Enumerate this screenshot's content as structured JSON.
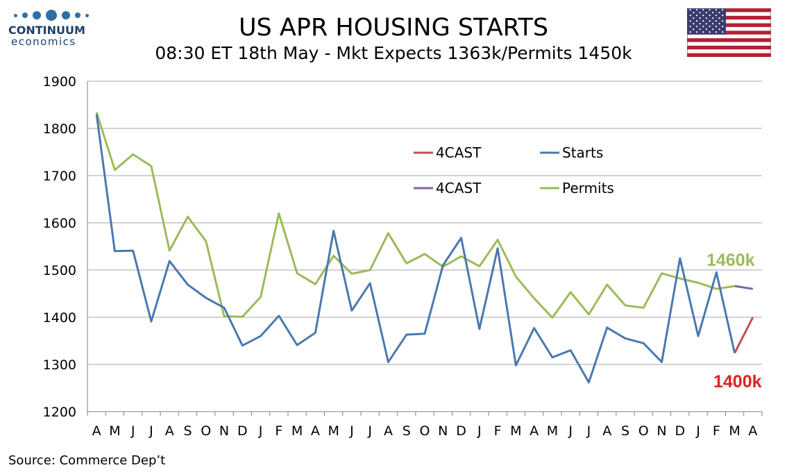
{
  "logo": {
    "name": "CONTINUUM",
    "sub": "economics"
  },
  "header": {
    "title": "US APR HOUSING STARTS",
    "subtitle": "08:30 ET 18th May - Mkt Expects 1363k/Permits 1450k"
  },
  "footer": {
    "source": "Source: Commerce Dep’t"
  },
  "colors": {
    "starts": "#4a78b0",
    "permits": "#9bbb59",
    "forecast_starts": "#c0504d",
    "forecast_permits": "#8064a2",
    "callout_permits": "#9bbb59",
    "callout_starts": "#e02020",
    "grid": "#a6a6a6"
  },
  "chart_data": {
    "type": "line",
    "categories": [
      "A",
      "M",
      "J",
      "J",
      "A",
      "S",
      "O",
      "N",
      "D",
      "J",
      "F",
      "M",
      "A",
      "M",
      "J",
      "J",
      "A",
      "S",
      "O",
      "N",
      "D",
      "J",
      "F",
      "M",
      "A",
      "M",
      "J",
      "J",
      "A",
      "S",
      "O",
      "N",
      "D",
      "J",
      "F",
      "M",
      "A"
    ],
    "ylim": [
      1200,
      1900
    ],
    "yticks": [
      1200,
      1300,
      1400,
      1500,
      1600,
      1700,
      1800,
      1900
    ],
    "grid": true,
    "legend_position": "top-center",
    "legend": [
      "4CAST",
      "Starts",
      "4CAST",
      "Permits"
    ],
    "series": [
      {
        "name": "Starts",
        "color": "#4a78b0",
        "values": [
          1830,
          1540,
          1541,
          1391,
          1519,
          1469,
          1441,
          1420,
          1340,
          1360,
          1403,
          1341,
          1367,
          1583,
          1414,
          1472,
          1305,
          1363,
          1365,
          1510,
          1568,
          1375,
          1546,
          1298,
          1377,
          1315,
          1330,
          1262,
          1378,
          1355,
          1345,
          1305,
          1525,
          1360,
          1495,
          1324,
          null
        ]
      },
      {
        "name": "Permits",
        "color": "#9bbb59",
        "values": [
          1834,
          1712,
          1745,
          1720,
          1541,
          1613,
          1561,
          1402,
          1401,
          1443,
          1620,
          1493,
          1470,
          1530,
          1492,
          1500,
          1578,
          1514,
          1534,
          1507,
          1529,
          1508,
          1564,
          1486,
          1440,
          1399,
          1453,
          1406,
          1469,
          1425,
          1420,
          1493,
          1482,
          1473,
          1460,
          1466,
          null
        ]
      },
      {
        "name": "4CAST",
        "color": "#c0504d",
        "values": [
          null,
          null,
          null,
          null,
          null,
          null,
          null,
          null,
          null,
          null,
          null,
          null,
          null,
          null,
          null,
          null,
          null,
          null,
          null,
          null,
          null,
          null,
          null,
          null,
          null,
          null,
          null,
          null,
          null,
          null,
          null,
          null,
          null,
          null,
          null,
          1324,
          1400
        ]
      },
      {
        "name": "4CAST",
        "color": "#8064a2",
        "values": [
          null,
          null,
          null,
          null,
          null,
          null,
          null,
          null,
          null,
          null,
          null,
          null,
          null,
          null,
          null,
          null,
          null,
          null,
          null,
          null,
          null,
          null,
          null,
          null,
          null,
          null,
          null,
          null,
          null,
          null,
          null,
          null,
          null,
          null,
          null,
          1466,
          1460
        ]
      }
    ],
    "annotations": [
      {
        "text": "1460k",
        "color": "#9bbb59"
      },
      {
        "text": "1400k",
        "color": "#e02020"
      }
    ]
  }
}
